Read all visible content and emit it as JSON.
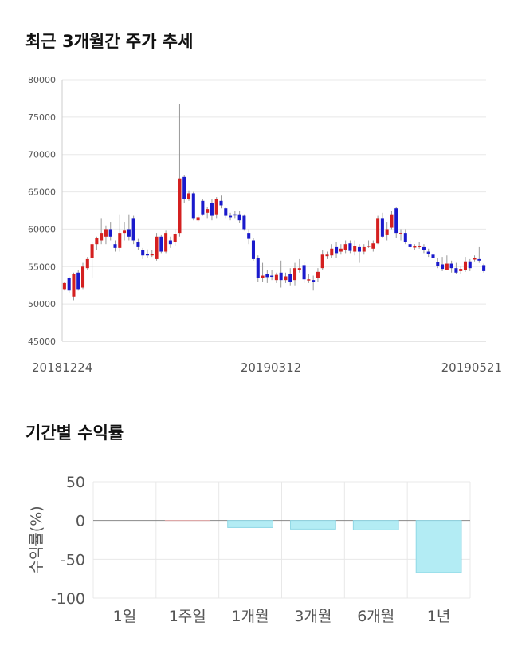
{
  "sections": {
    "price_title": "최근 3개월간 주가 추세",
    "returns_title": "기간별 수익률"
  },
  "colors": {
    "up": "#d42020",
    "down": "#1a1acc",
    "bar_fill": "#b3ecf4",
    "bar_stroke": "#8fd8e6",
    "grid": "#e8e8e8"
  },
  "chart_data": [
    {
      "type": "candlestick",
      "title": "최근 3개월간 주가 추세",
      "ylim": [
        45000,
        80000
      ],
      "yticks": [
        45000,
        50000,
        55000,
        60000,
        65000,
        70000,
        75000,
        80000
      ],
      "xtick_labels": [
        "20181224",
        "20190312",
        "20190521"
      ],
      "grid": true,
      "candles": [
        [
          52000,
          52800,
          51800,
          53000
        ],
        [
          53500,
          51800,
          51500,
          53700
        ],
        [
          51000,
          54000,
          50500,
          54200
        ],
        [
          54200,
          52000,
          51800,
          54500
        ],
        [
          52200,
          55000,
          52000,
          55500
        ],
        [
          54800,
          56000,
          54500,
          56300
        ],
        [
          56200,
          58000,
          53500,
          58300
        ],
        [
          58000,
          58800,
          57200,
          59000
        ],
        [
          58500,
          59500,
          58000,
          61500
        ],
        [
          59000,
          60000,
          58000,
          60500
        ],
        [
          60000,
          59000,
          58500,
          61000
        ],
        [
          58000,
          57500,
          57000,
          58500
        ],
        [
          57500,
          59500,
          57000,
          62000
        ],
        [
          59500,
          59800,
          58500,
          61000
        ],
        [
          60000,
          59000,
          58500,
          62000
        ],
        [
          61500,
          58500,
          58000,
          61800
        ],
        [
          58300,
          57600,
          57200,
          58700
        ],
        [
          57200,
          56500,
          56000,
          57500
        ],
        [
          56700,
          56500,
          56200,
          57300
        ],
        [
          56500,
          56700,
          56300,
          57200
        ],
        [
          56000,
          59000,
          55800,
          59500
        ],
        [
          59000,
          57000,
          56800,
          59200
        ],
        [
          57000,
          59500,
          56800,
          59800
        ],
        [
          58500,
          58000,
          57500,
          59000
        ],
        [
          58300,
          59300,
          57800,
          60000
        ],
        [
          59500,
          66800,
          59000,
          76800
        ],
        [
          67000,
          64000,
          63500,
          67200
        ],
        [
          64000,
          64800,
          63800,
          65200
        ],
        [
          64800,
          61500,
          61200,
          65000
        ],
        [
          61200,
          61600,
          61000,
          62000
        ],
        [
          63800,
          62000,
          61800,
          64000
        ],
        [
          62200,
          62700,
          61500,
          63000
        ],
        [
          63500,
          61800,
          61200,
          64000
        ],
        [
          62000,
          64000,
          61500,
          64300
        ],
        [
          63800,
          63200,
          62800,
          64500
        ],
        [
          62800,
          61800,
          61500,
          63000
        ],
        [
          61800,
          61600,
          61200,
          62200
        ],
        [
          62000,
          61900,
          61500,
          62500
        ],
        [
          62000,
          61200,
          60800,
          62500
        ],
        [
          61800,
          60000,
          59800,
          62000
        ],
        [
          59500,
          58700,
          58000,
          60000
        ],
        [
          58500,
          56000,
          55800,
          58800
        ],
        [
          56200,
          53500,
          53000,
          56500
        ],
        [
          53500,
          53800,
          53000,
          55500
        ],
        [
          54000,
          53600,
          52800,
          54500
        ],
        [
          53800,
          53700,
          53200,
          54500
        ],
        [
          53200,
          53900,
          52800,
          54200
        ],
        [
          54200,
          53200,
          52200,
          55800
        ],
        [
          53200,
          53700,
          52800,
          54200
        ],
        [
          54000,
          52900,
          52500,
          54800
        ],
        [
          53200,
          54800,
          52500,
          55500
        ],
        [
          54600,
          54800,
          54200,
          56000
        ],
        [
          55200,
          53300,
          52800,
          55600
        ],
        [
          53300,
          53300,
          52800,
          54000
        ],
        [
          53200,
          53000,
          51800,
          53800
        ],
        [
          53500,
          54300,
          53000,
          54800
        ],
        [
          54800,
          56600,
          54500,
          57200
        ],
        [
          56400,
          56600,
          56000,
          57000
        ],
        [
          56500,
          57400,
          56200,
          58000
        ],
        [
          57600,
          56800,
          56200,
          58300
        ],
        [
          57000,
          57400,
          56600,
          58000
        ],
        [
          57200,
          58000,
          56800,
          58500
        ],
        [
          58100,
          57100,
          56800,
          58500
        ],
        [
          57000,
          57800,
          56500,
          58500
        ],
        [
          57600,
          57000,
          55500,
          58000
        ],
        [
          57000,
          57600,
          56600,
          58000
        ],
        [
          57800,
          57800,
          57500,
          58500
        ],
        [
          57400,
          58100,
          57000,
          58500
        ],
        [
          58100,
          61500,
          58000,
          61800
        ],
        [
          61500,
          59000,
          58800,
          62200
        ],
        [
          59200,
          60000,
          58500,
          61000
        ],
        [
          60200,
          62000,
          60000,
          62500
        ],
        [
          62800,
          59500,
          58800,
          63000
        ],
        [
          59500,
          59500,
          58500,
          60000
        ],
        [
          59500,
          58300,
          58000,
          60000
        ],
        [
          58000,
          57600,
          57400,
          58500
        ],
        [
          57600,
          57700,
          57200,
          58000
        ],
        [
          57600,
          57800,
          57400,
          58300
        ],
        [
          57600,
          57200,
          56800,
          58000
        ],
        [
          57000,
          56700,
          56300,
          57400
        ],
        [
          56600,
          56100,
          55800,
          57000
        ],
        [
          55600,
          55100,
          54800,
          56200
        ],
        [
          55300,
          54700,
          54400,
          56300
        ],
        [
          54600,
          55400,
          54500,
          56500
        ],
        [
          55400,
          54800,
          54200,
          55800
        ],
        [
          54800,
          54200,
          54000,
          55500
        ],
        [
          54400,
          54700,
          54000,
          55000
        ],
        [
          54600,
          55700,
          54300,
          56300
        ],
        [
          55700,
          54800,
          54400,
          56000
        ],
        [
          56000,
          56100,
          55700,
          56500
        ],
        [
          56000,
          55800,
          55500,
          57600
        ],
        [
          55200,
          54400,
          54200,
          55400
        ]
      ]
    },
    {
      "type": "bar",
      "ylabel": "수익률(%)",
      "ylim": [
        -100,
        50
      ],
      "yticks": [
        50,
        0,
        -50,
        -100
      ],
      "categories": [
        "1일",
        "1주일",
        "1개월",
        "3개월",
        "6개월",
        "1년"
      ],
      "values": [
        0,
        0.5,
        -9,
        -11,
        -12,
        -67
      ]
    }
  ]
}
